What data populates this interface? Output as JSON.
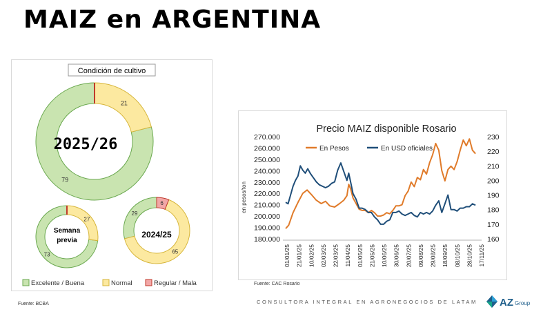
{
  "page_title": "MAIZ en ARGENTINA",
  "left_source": "Fuente: BCBA",
  "right_source": "Fuente: CAC Rosario",
  "footer_text": "CONSULTORA INTEGRAL EN AGRONEGOCIOS DE LATAM",
  "logo_text": "AZ",
  "logo_sub": "Group",
  "chart_data": [
    {
      "type": "pie",
      "title": "Condición de cultivo",
      "label": "2025/26",
      "slices": [
        {
          "name": "Excelente / Buena",
          "value": 79
        },
        {
          "name": "Normal",
          "value": 21
        },
        {
          "name": "Regular / Mala",
          "value": 0
        }
      ],
      "legend": [
        "Excelente / Buena",
        "Normal",
        "Regular / Mala"
      ],
      "colors": {
        "Excelente / Buena": "#c9e4b0",
        "Normal": "#fce9a0",
        "Regular / Mala": "#f2a7a7"
      }
    },
    {
      "type": "pie",
      "label": "Semana previa",
      "label_lines": [
        "Semana",
        "previa"
      ],
      "slices": [
        {
          "name": "Excelente / Buena",
          "value": 73
        },
        {
          "name": "Normal",
          "value": 27
        },
        {
          "name": "Regular / Mala",
          "value": 0
        }
      ]
    },
    {
      "type": "pie",
      "label": "2024/25",
      "slices": [
        {
          "name": "Excelente / Buena",
          "value": 29
        },
        {
          "name": "Normal",
          "value": 65
        },
        {
          "name": "Regular / Mala",
          "value": 6
        }
      ]
    },
    {
      "type": "line",
      "title": "Precio MAIZ disponible Rosario",
      "ylabel": "en pesos/ton",
      "ylim": [
        180000,
        270000
      ],
      "y_ticks": [
        "180.000",
        "190.000",
        "200.000",
        "210.000",
        "220.000",
        "230.000",
        "240.000",
        "250.000",
        "260.000",
        "270.000"
      ],
      "y2lim": [
        160,
        230
      ],
      "y2_ticks": [
        "160",
        "170",
        "180",
        "190",
        "200",
        "210",
        "220",
        "230"
      ],
      "x_ticks": [
        "01/01/25",
        "21/01/25",
        "10/02/25",
        "02/03/25",
        "22/03/25",
        "11/04/25",
        "01/05/25",
        "21/05/25",
        "10/06/25",
        "30/06/25",
        "20/07/25",
        "09/08/25",
        "29/08/25",
        "18/09/25",
        "08/10/25",
        "28/10/25",
        "17/11/25"
      ],
      "series": [
        {
          "name": "En Pesos",
          "axis": "left",
          "color": "#e07b2a",
          "x": [
            0,
            5,
            12,
            20,
            28,
            35,
            42,
            50,
            58,
            65,
            72,
            80,
            88,
            95,
            100,
            103,
            106,
            110,
            115,
            120,
            125,
            130,
            135,
            140,
            145,
            150,
            155,
            160,
            165,
            170,
            175,
            180,
            185,
            190,
            195,
            200,
            205,
            210,
            215,
            220,
            225,
            230,
            235,
            240,
            245,
            250,
            255,
            260,
            265,
            270,
            275,
            280,
            285,
            290,
            295,
            300,
            305,
            310
          ],
          "values": [
            189000,
            192000,
            203000,
            212000,
            220000,
            223000,
            219000,
            214000,
            211000,
            213000,
            209000,
            208000,
            211000,
            214000,
            218000,
            228000,
            224000,
            216000,
            211000,
            206000,
            205000,
            205000,
            203000,
            205000,
            203000,
            200000,
            200000,
            201000,
            203000,
            202000,
            205000,
            209000,
            209000,
            210000,
            218000,
            222000,
            230000,
            226000,
            234000,
            232000,
            241000,
            237000,
            247000,
            254000,
            264000,
            258000,
            240000,
            231000,
            241000,
            244000,
            241000,
            248000,
            258000,
            267000,
            262000,
            268000,
            258000,
            255000
          ]
        },
        {
          "name": "En USD oficiales",
          "axis": "right",
          "color": "#1f4e79",
          "x": [
            0,
            4,
            8,
            12,
            16,
            20,
            24,
            28,
            32,
            36,
            40,
            45,
            50,
            55,
            60,
            65,
            70,
            75,
            80,
            85,
            90,
            95,
            100,
            103,
            106,
            110,
            115,
            120,
            125,
            130,
            135,
            140,
            145,
            150,
            155,
            160,
            165,
            170,
            175,
            180,
            185,
            190,
            195,
            200,
            205,
            210,
            215,
            220,
            225,
            230,
            235,
            240,
            245,
            250,
            255,
            260,
            265,
            270,
            275,
            280,
            285,
            290,
            295,
            300,
            305,
            310
          ],
          "values": [
            185,
            184,
            190,
            196,
            200,
            203,
            210,
            207,
            205,
            208,
            205,
            202,
            199,
            197,
            196,
            195,
            196,
            198,
            199,
            207,
            212,
            206,
            200,
            205,
            199,
            191,
            187,
            181,
            181,
            180,
            178,
            178,
            175,
            173,
            170,
            170,
            172,
            173,
            178,
            178,
            179,
            177,
            176,
            177,
            178,
            176,
            175,
            178,
            177,
            178,
            177,
            179,
            183,
            186,
            178,
            184,
            190,
            180,
            180,
            179,
            181,
            181,
            182,
            182,
            184,
            183
          ]
        }
      ]
    }
  ]
}
